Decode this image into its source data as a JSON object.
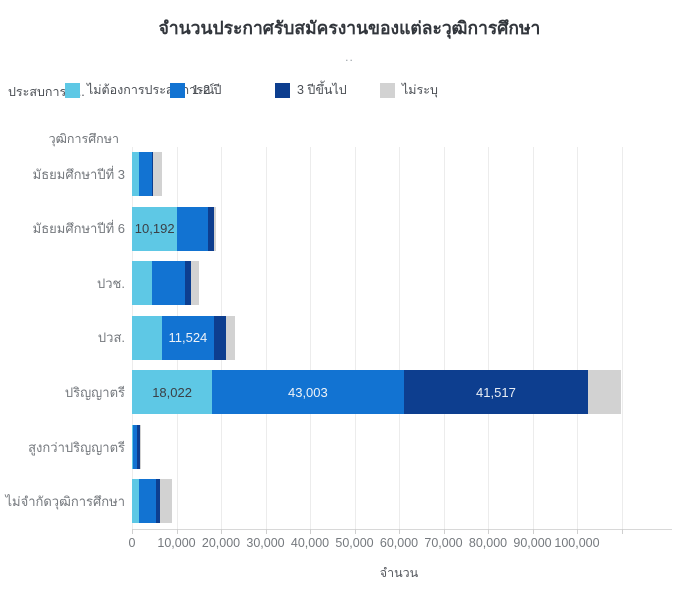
{
  "title": "จำนวนประกาศรับสมัครงานของแต่ละวุฒิการศึกษา",
  "subtitle": "..",
  "legend": {
    "title": "ประสบการณ์..",
    "items": [
      {
        "label": "ไม่ต้องการประสบการณ์",
        "color": "#5ec8e5"
      },
      {
        "label": "1-2 ปี",
        "color": "#1273d2"
      },
      {
        "label": "3 ปีขึ้นไป",
        "color": "#0d3e8f"
      },
      {
        "label": "ไม่ระบุ",
        "color": "#d2d2d2"
      }
    ]
  },
  "chart_data": {
    "type": "bar",
    "orientation": "horizontal",
    "stacked": true,
    "title": "จำนวนประกาศรับสมัครงานของแต่ละวุฒิการศึกษา",
    "xlabel": "จำนวน",
    "ylabel": "วุฒิการศึกษา",
    "xlim": [
      0,
      120000
    ],
    "xticks": [
      0,
      10000,
      20000,
      30000,
      40000,
      50000,
      60000,
      70000,
      80000,
      90000,
      100000
    ],
    "extra_gridlines": [
      110000
    ],
    "grid": true,
    "legend_position": "top",
    "data_label_threshold": 10000,
    "categories": [
      "มัธยมศึกษาปีที่ 3",
      "มัธยมศึกษาปีที่ 6",
      "ปวช.",
      "ปวส.",
      "ปริญญาตรี",
      "สูงกว่าปริญญาตรี",
      "ไม่จำกัดวุฒิการศึกษา"
    ],
    "series": [
      {
        "name": "ไม่ต้องการประสบการณ์",
        "color": "#5ec8e5",
        "label_color": "#3b4046",
        "values": [
          1500,
          10192,
          4600,
          6800,
          18022,
          200,
          1500
        ]
      },
      {
        "name": "1-2 ปี",
        "color": "#1273d2",
        "label_color": "#eef2f7",
        "values": [
          2900,
          6800,
          7300,
          11524,
          43003,
          900,
          4000
        ]
      },
      {
        "name": "3 ปีขึ้นไป",
        "color": "#0d3e8f",
        "label_color": "#e8edf4",
        "values": [
          400,
          1500,
          1300,
          2800,
          41517,
          600,
          900
        ]
      },
      {
        "name": "ไม่ระบุ",
        "color": "#d2d2d2",
        "label_color": "#3b4046",
        "values": [
          2000,
          500,
          1900,
          2100,
          7400,
          150,
          2600
        ]
      }
    ]
  }
}
